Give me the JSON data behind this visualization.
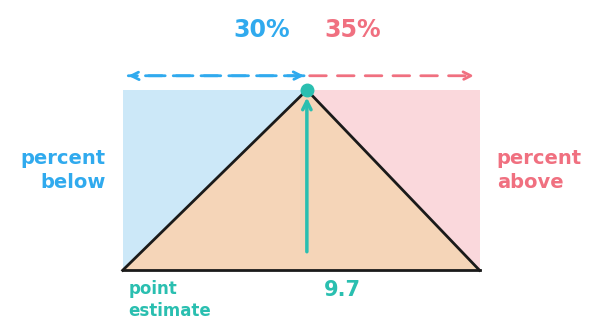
{
  "bg_color": "#ffffff",
  "rect_left_color": "#cce8f8",
  "rect_right_color": "#fad8dc",
  "triangle_color": "#f5d5b8",
  "triangle_edge_color": "#1a1a1a",
  "teal_color": "#2abfb0",
  "blue_color": "#30aaee",
  "pink_color": "#f07080",
  "percent_below": "30%",
  "percent_above": "35%",
  "label_left": "percent\nbelow",
  "label_right": "percent\nabove",
  "label_point": "point\nestimate",
  "label_value": "9.7",
  "figsize": [
    6.0,
    3.29
  ],
  "dpi": 100
}
